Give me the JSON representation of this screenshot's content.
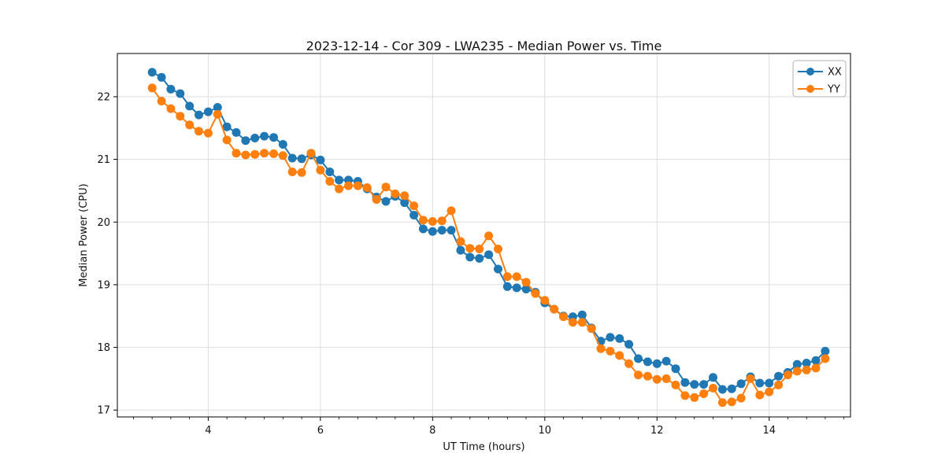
{
  "title": "2023-12-14 - Cor 309 - LWA235 - Median Power vs. Time",
  "chart_data": {
    "type": "line",
    "title": "2023-12-14 - Cor 309 - LWA235 - Median Power vs. Time",
    "xlabel": "UT Time (hours)",
    "ylabel": "Median Power (CPU)",
    "xlim": [
      2.38,
      15.45
    ],
    "ylim": [
      16.89,
      22.69
    ],
    "xticks": [
      4,
      6,
      8,
      10,
      12,
      14
    ],
    "yticks": [
      17,
      18,
      19,
      20,
      21,
      22
    ],
    "x_minor_tick_step": 0.33333,
    "grid": true,
    "legend_position": "upper right",
    "x": [
      3.0,
      3.167,
      3.333,
      3.5,
      3.667,
      3.833,
      4.0,
      4.167,
      4.333,
      4.5,
      4.667,
      4.833,
      5.0,
      5.167,
      5.333,
      5.5,
      5.667,
      5.833,
      6.0,
      6.167,
      6.333,
      6.5,
      6.667,
      6.833,
      7.0,
      7.167,
      7.333,
      7.5,
      7.667,
      7.833,
      8.0,
      8.167,
      8.333,
      8.5,
      8.667,
      8.833,
      9.0,
      9.167,
      9.333,
      9.5,
      9.667,
      9.833,
      10.0,
      10.167,
      10.333,
      10.5,
      10.667,
      10.833,
      11.0,
      11.167,
      11.333,
      11.5,
      11.667,
      11.833,
      12.0,
      12.167,
      12.333,
      12.5,
      12.667,
      12.833,
      13.0,
      13.167,
      13.333,
      13.5,
      13.667,
      13.833,
      14.0,
      14.167,
      14.333,
      14.5,
      14.667,
      14.833,
      15.0
    ],
    "series": [
      {
        "name": "XX",
        "color": "#1f77b4",
        "values": [
          22.39,
          22.31,
          22.12,
          22.05,
          21.85,
          21.71,
          21.76,
          21.83,
          21.52,
          21.43,
          21.3,
          21.34,
          21.37,
          21.35,
          21.24,
          21.02,
          21.01,
          21.07,
          20.99,
          20.8,
          20.67,
          20.67,
          20.65,
          20.53,
          20.4,
          20.33,
          20.41,
          20.31,
          20.11,
          19.89,
          19.85,
          19.87,
          19.87,
          19.55,
          19.44,
          19.42,
          19.48,
          19.25,
          18.97,
          18.95,
          18.93,
          18.88,
          18.71,
          18.61,
          18.5,
          18.49,
          18.52,
          18.31,
          18.1,
          18.16,
          18.14,
          18.05,
          17.82,
          17.77,
          17.74,
          17.78,
          17.66,
          17.44,
          17.41,
          17.41,
          17.52,
          17.33,
          17.34,
          17.42,
          17.53,
          17.43,
          17.43,
          17.54,
          17.6,
          17.73,
          17.75,
          17.79,
          17.94
        ]
      },
      {
        "name": "YY",
        "color": "#ff7f0e",
        "values": [
          22.14,
          21.93,
          21.81,
          21.69,
          21.55,
          21.45,
          21.42,
          21.72,
          21.31,
          21.1,
          21.07,
          21.08,
          21.1,
          21.09,
          21.06,
          20.8,
          20.79,
          21.1,
          20.83,
          20.65,
          20.53,
          20.58,
          20.58,
          20.55,
          20.36,
          20.56,
          20.45,
          20.42,
          20.26,
          20.03,
          20.01,
          20.02,
          20.18,
          19.69,
          19.58,
          19.57,
          19.78,
          19.57,
          19.13,
          19.13,
          19.04,
          18.86,
          18.75,
          18.61,
          18.49,
          18.4,
          18.4,
          18.3,
          17.98,
          17.94,
          17.87,
          17.74,
          17.56,
          17.54,
          17.49,
          17.5,
          17.4,
          17.23,
          17.2,
          17.26,
          17.35,
          17.12,
          17.13,
          17.19,
          17.5,
          17.24,
          17.29,
          17.4,
          17.56,
          17.62,
          17.64,
          17.67,
          17.82
        ]
      }
    ]
  }
}
